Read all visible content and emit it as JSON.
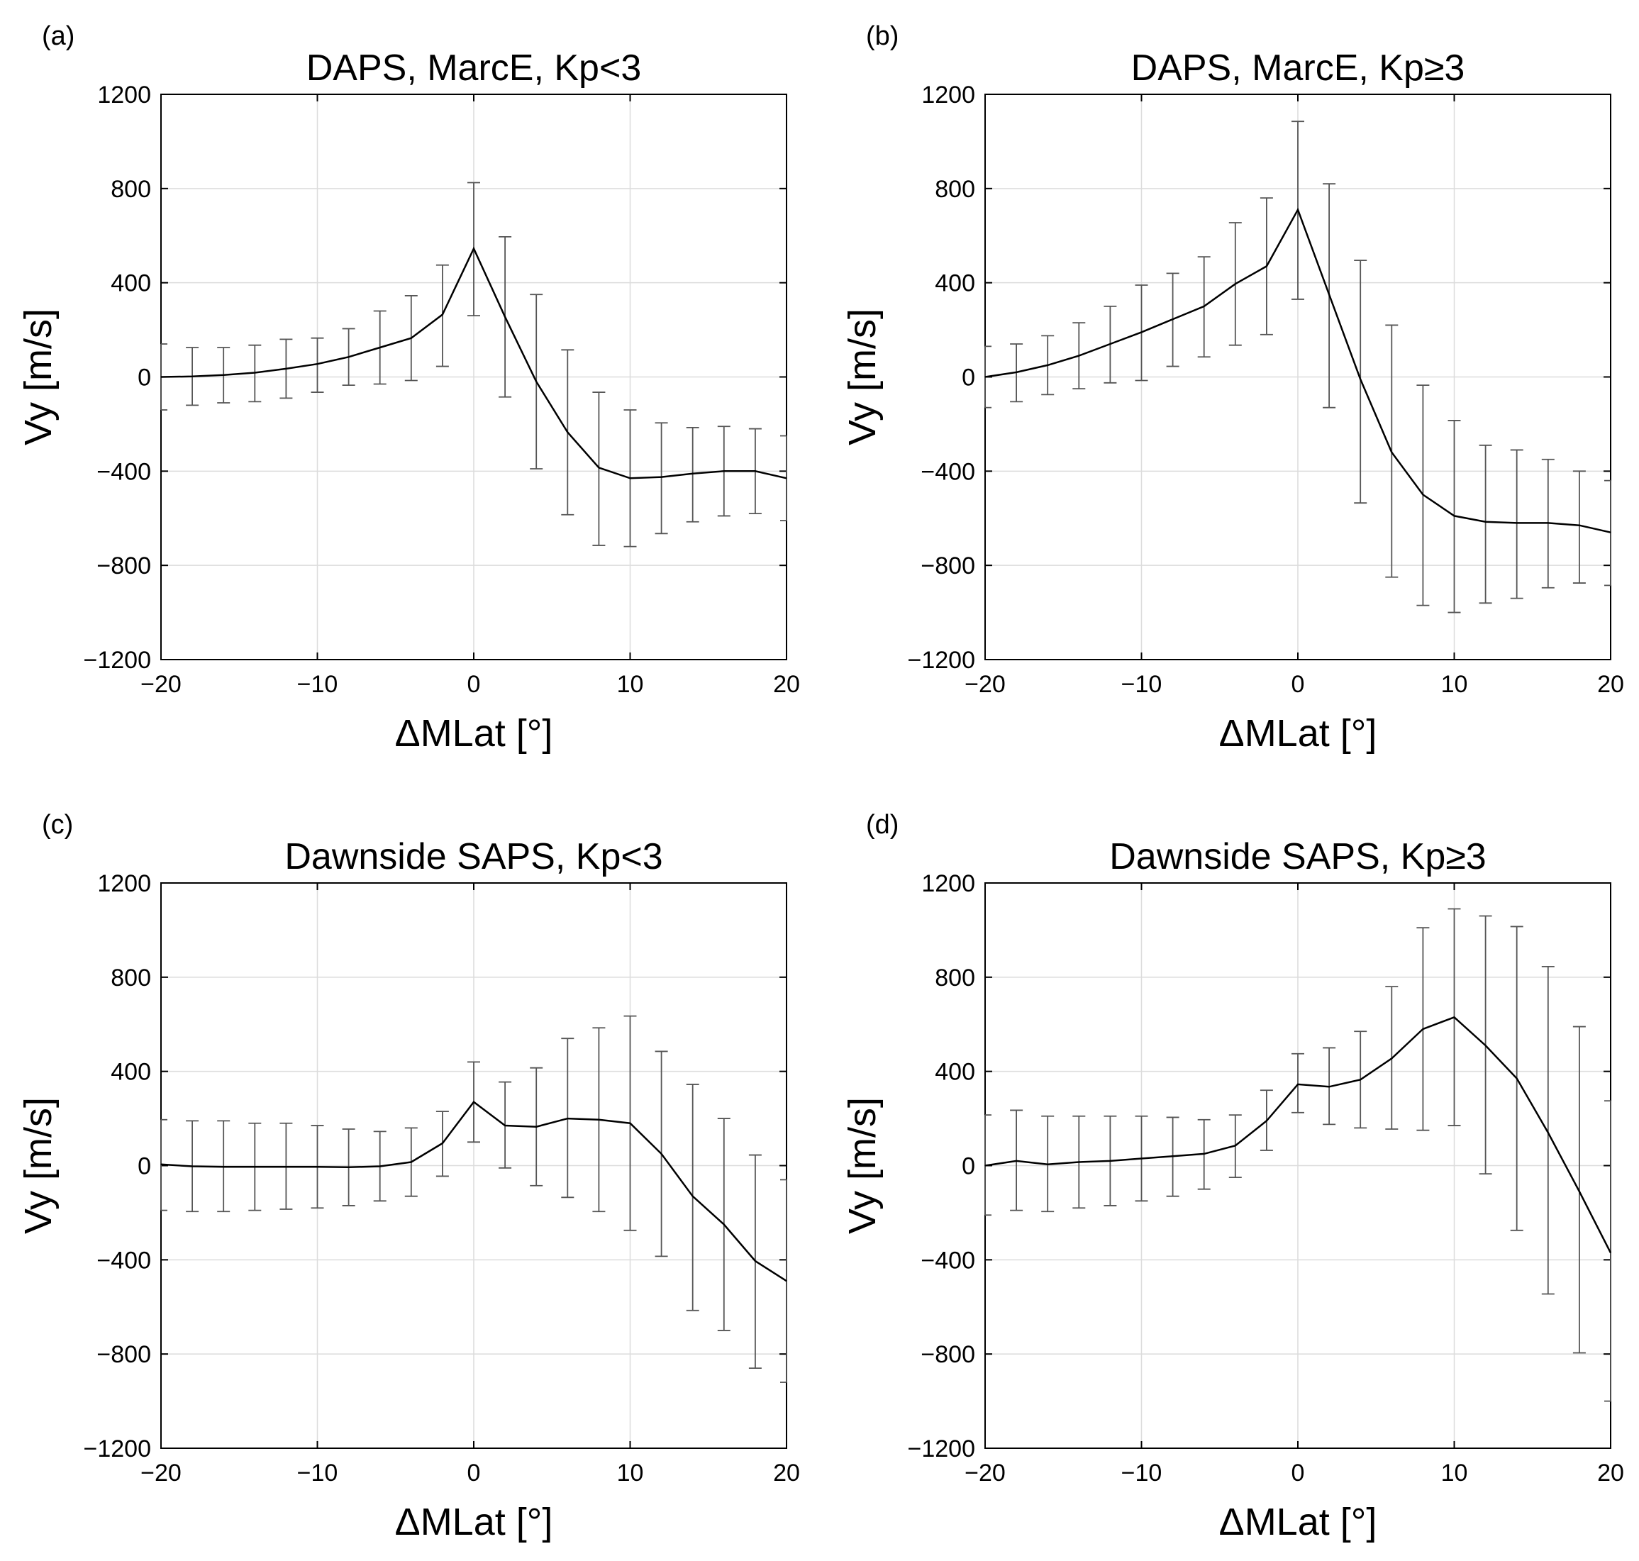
{
  "chart_data": [
    {
      "type": "line",
      "panel": "(a)",
      "title": "DAPS, MarcE, Kp<3",
      "xlabel": "ΔMLat [°]",
      "ylabel": "Vy [m/s]",
      "xlim": [
        -20,
        20
      ],
      "ylim": [
        -1200,
        1200
      ],
      "xticks": [
        -20,
        -10,
        0,
        10,
        20
      ],
      "yticks": [
        -1200,
        -800,
        -400,
        0,
        400,
        800,
        1200
      ],
      "xtick_labels": [
        "−20",
        "−10",
        "0",
        "10",
        "20"
      ],
      "ytick_labels": [
        "−1200",
        "−800",
        "−400",
        "0",
        "400",
        "800",
        "1200"
      ],
      "grid": true,
      "x": [
        -20,
        -18,
        -16,
        -14,
        -12,
        -10,
        -8,
        -6,
        -4,
        -2,
        0,
        2,
        4,
        6,
        8,
        10,
        12,
        14,
        16,
        18,
        20
      ],
      "y": [
        0,
        2,
        8,
        18,
        35,
        55,
        85,
        125,
        165,
        265,
        545,
        255,
        -20,
        -235,
        -385,
        -430,
        -425,
        -410,
        -400,
        -400,
        -430
      ],
      "err_low": [
        -140,
        -120,
        -110,
        -105,
        -90,
        -65,
        -35,
        -30,
        -15,
        45,
        260,
        -85,
        -390,
        -585,
        -715,
        -720,
        -665,
        -615,
        -590,
        -580,
        -610
      ],
      "err_high": [
        140,
        125,
        125,
        135,
        160,
        165,
        205,
        280,
        345,
        475,
        825,
        595,
        350,
        115,
        -65,
        -140,
        -195,
        -215,
        -210,
        -220,
        -250
      ]
    },
    {
      "type": "line",
      "panel": "(b)",
      "title": "DAPS, MarcE, Kp≥3",
      "xlabel": "ΔMLat [°]",
      "ylabel": "Vy [m/s]",
      "xlim": [
        -20,
        20
      ],
      "ylim": [
        -1200,
        1200
      ],
      "xticks": [
        -20,
        -10,
        0,
        10,
        20
      ],
      "yticks": [
        -1200,
        -800,
        -400,
        0,
        400,
        800,
        1200
      ],
      "xtick_labels": [
        "−20",
        "−10",
        "0",
        "10",
        "20"
      ],
      "ytick_labels": [
        "−1200",
        "−800",
        "−400",
        "0",
        "400",
        "800",
        "1200"
      ],
      "grid": true,
      "x": [
        -20,
        -18,
        -16,
        -14,
        -12,
        -10,
        -8,
        -6,
        -4,
        -2,
        0,
        2,
        4,
        6,
        8,
        10,
        12,
        14,
        16,
        18,
        20
      ],
      "y": [
        0,
        20,
        50,
        90,
        140,
        190,
        245,
        300,
        395,
        470,
        710,
        350,
        -10,
        -320,
        -500,
        -590,
        -615,
        -620,
        -620,
        -630,
        -660
      ],
      "err_low": [
        -130,
        -105,
        -75,
        -50,
        -25,
        -15,
        45,
        85,
        135,
        180,
        330,
        -130,
        -535,
        -850,
        -970,
        -1000,
        -960,
        -940,
        -895,
        -875,
        -885
      ],
      "err_high": [
        130,
        140,
        175,
        230,
        300,
        390,
        440,
        510,
        655,
        760,
        1085,
        820,
        495,
        220,
        -35,
        -185,
        -290,
        -310,
        -350,
        -400,
        -440
      ]
    },
    {
      "type": "line",
      "panel": "(c)",
      "title": "Dawnside SAPS, Kp<3",
      "xlabel": "ΔMLat [°]",
      "ylabel": "Vy [m/s]",
      "xlim": [
        -20,
        20
      ],
      "ylim": [
        -1200,
        1200
      ],
      "xticks": [
        -20,
        -10,
        0,
        10,
        20
      ],
      "yticks": [
        -1200,
        -800,
        -400,
        0,
        400,
        800,
        1200
      ],
      "xtick_labels": [
        "−20",
        "−10",
        "0",
        "10",
        "20"
      ],
      "ytick_labels": [
        "−1200",
        "−800",
        "−400",
        "0",
        "400",
        "800",
        "1200"
      ],
      "grid": true,
      "x": [
        -20,
        -18,
        -16,
        -14,
        -12,
        -10,
        -8,
        -6,
        -4,
        -2,
        0,
        2,
        4,
        6,
        8,
        10,
        12,
        14,
        16,
        18,
        20
      ],
      "y": [
        5,
        -3,
        -5,
        -5,
        -5,
        -5,
        -7,
        -3,
        15,
        95,
        270,
        170,
        165,
        200,
        195,
        180,
        50,
        -130,
        -250,
        -405,
        -490
      ],
      "err_low": [
        -190,
        -195,
        -195,
        -190,
        -185,
        -180,
        -170,
        -150,
        -130,
        -45,
        100,
        -10,
        -85,
        -135,
        -195,
        -275,
        -385,
        -615,
        -700,
        -860,
        -920
      ],
      "err_high": [
        195,
        190,
        190,
        180,
        180,
        170,
        155,
        145,
        160,
        230,
        440,
        355,
        415,
        540,
        585,
        635,
        485,
        345,
        200,
        45,
        -60
      ]
    },
    {
      "type": "line",
      "panel": "(d)",
      "title": "Dawnside SAPS, Kp≥3",
      "xlabel": "ΔMLat [°]",
      "ylabel": "Vy [m/s]",
      "xlim": [
        -20,
        20
      ],
      "ylim": [
        -1200,
        1200
      ],
      "xticks": [
        -20,
        -10,
        0,
        10,
        20
      ],
      "yticks": [
        -1200,
        -800,
        -400,
        0,
        400,
        800,
        1200
      ],
      "xtick_labels": [
        "−20",
        "−10",
        "0",
        "10",
        "20"
      ],
      "ytick_labels": [
        "−1200",
        "−800",
        "−400",
        "0",
        "400",
        "800",
        "1200"
      ],
      "grid": true,
      "x": [
        -20,
        -18,
        -16,
        -14,
        -12,
        -10,
        -8,
        -6,
        -4,
        -2,
        0,
        2,
        4,
        6,
        8,
        10,
        12,
        14,
        16,
        18,
        20
      ],
      "y": [
        0,
        20,
        5,
        15,
        20,
        30,
        40,
        50,
        85,
        190,
        345,
        335,
        365,
        455,
        580,
        630,
        510,
        370,
        140,
        -110,
        -370
      ],
      "err_low": [
        -210,
        -190,
        -195,
        -180,
        -170,
        -150,
        -130,
        -100,
        -50,
        65,
        225,
        175,
        160,
        155,
        150,
        170,
        -35,
        -275,
        -545,
        -795,
        -1000
      ],
      "err_high": [
        215,
        235,
        210,
        210,
        210,
        210,
        205,
        195,
        215,
        320,
        475,
        500,
        570,
        760,
        1010,
        1090,
        1060,
        1015,
        845,
        590,
        275
      ]
    }
  ]
}
